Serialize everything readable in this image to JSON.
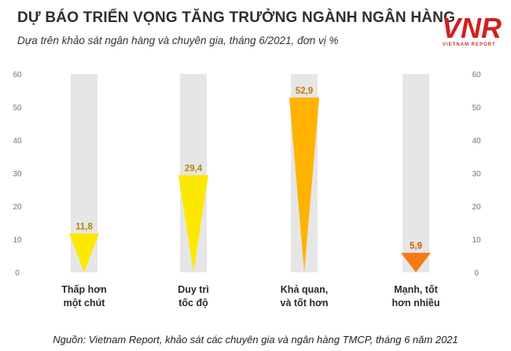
{
  "header": {
    "title": "DỰ BÁO TRIỂN VỌNG TĂNG TRƯỞNG NGÀNH NGÂN HÀNG",
    "subtitle": "Dựa trên khảo sát ngân hàng và chuyên gia, tháng 6/2021, đơn vị %"
  },
  "logo": {
    "mark": "VNR",
    "tagline": "VIETNAM REPORT",
    "color": "#d0201f"
  },
  "source": "Nguồn: Vietnam Report, khảo sát các chuyên gia và ngân hàng TMCP, tháng 6 năm 2021",
  "chart_data": {
    "type": "bar",
    "shape": "inverted-triangle",
    "categories": [
      [
        "Thấp hơn",
        "một chút"
      ],
      [
        "Duy trì",
        "tốc độ"
      ],
      [
        "Khả quan,",
        "và tốt hơn"
      ],
      [
        "Mạnh, tốt",
        "hơn nhiều"
      ]
    ],
    "values": [
      11.8,
      29.4,
      52.9,
      5.9
    ],
    "value_labels": [
      "11,8",
      "29,4",
      "52,9",
      "5,9"
    ],
    "colors": [
      "#fde800",
      "#fde800",
      "#ffb300",
      "#f47a14"
    ],
    "label_colors": [
      "#b08800",
      "#b08800",
      "#c07800",
      "#c85a00"
    ],
    "ylim": [
      0,
      60
    ],
    "yticks": [
      0,
      10,
      20,
      30,
      40,
      50,
      60
    ],
    "y_axis_both_sides": true,
    "background_column_color": "#e6e6e6"
  }
}
